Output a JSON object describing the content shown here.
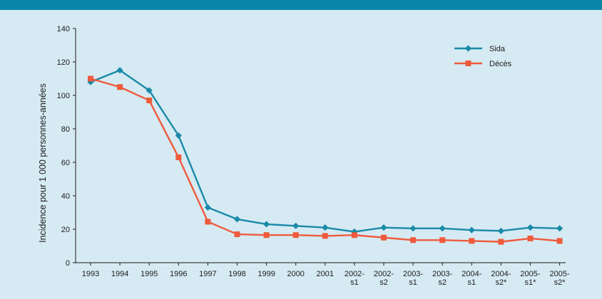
{
  "colors": {
    "background": "#d6eaf3",
    "band": "#0b86a8",
    "axis": "#1b1b1b"
  },
  "chart_data": {
    "type": "line",
    "title": "",
    "xlabel": "",
    "ylabel": "Incidence pour 1 000 personnes-années",
    "ylim": [
      0,
      140
    ],
    "yticks": [
      0,
      20,
      40,
      60,
      80,
      100,
      120,
      140
    ],
    "grid": false,
    "legend_position": "top-right",
    "categories": [
      [
        "1993"
      ],
      [
        "1994"
      ],
      [
        "1995"
      ],
      [
        "1996"
      ],
      [
        "1997"
      ],
      [
        "1998"
      ],
      [
        "1999"
      ],
      [
        "2000"
      ],
      [
        "2001"
      ],
      [
        "2002-",
        "s1"
      ],
      [
        "2002-",
        "s2"
      ],
      [
        "2003-",
        "s1"
      ],
      [
        "2003-",
        "s2"
      ],
      [
        "2004-",
        "s1"
      ],
      [
        "2004-",
        "s2*"
      ],
      [
        "2005-",
        "s1*"
      ],
      [
        "2005-",
        "s2*"
      ]
    ],
    "series": [
      {
        "name": "Sida",
        "color": "#1a8aa8",
        "marker": "diamond",
        "values": [
          108,
          115,
          103,
          76,
          33,
          26,
          23,
          22,
          21,
          18.5,
          21,
          20.5,
          20.5,
          19.5,
          19,
          21,
          20.5
        ]
      },
      {
        "name": "Décès",
        "color": "#ef5a3c",
        "marker": "square",
        "values": [
          110,
          105,
          97,
          63,
          24.5,
          17,
          16.5,
          16.5,
          16,
          16.5,
          15,
          13.5,
          13.5,
          13,
          12.5,
          14.5,
          13
        ]
      }
    ]
  }
}
